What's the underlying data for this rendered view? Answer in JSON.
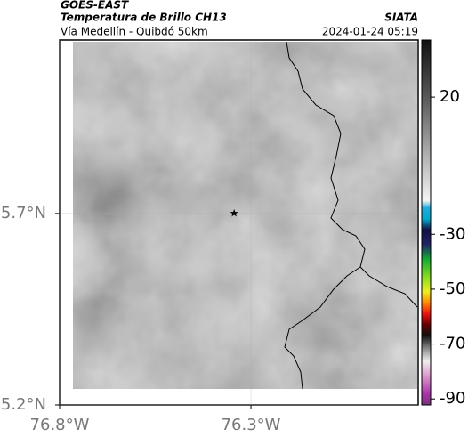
{
  "chart_data": {
    "type": "map",
    "title": "GOES-EAST",
    "subtitle": "Temperatura de Brillo CH13",
    "route": "Vía Medellín - Quibdó 50km",
    "source": "SIATA",
    "timestamp": "2024-01-24 05:19",
    "xlim": [
      -76.8,
      -75.863
    ],
    "ylim": [
      5.2,
      6.153
    ],
    "xticks": [
      {
        "value": -76.8,
        "label": "76.8°W"
      },
      {
        "value": -76.3,
        "label": "76.3°W"
      }
    ],
    "yticks": [
      {
        "value": 5.2,
        "label": "5.2°N"
      },
      {
        "value": 5.7,
        "label": "5.7°N"
      }
    ],
    "marker": {
      "lon": -76.344,
      "lat": 5.7
    },
    "colorbar_lim": [
      -92.2,
      40.8
    ],
    "colorbar_ticks": [
      20,
      -30,
      -50,
      -70,
      -90
    ]
  }
}
